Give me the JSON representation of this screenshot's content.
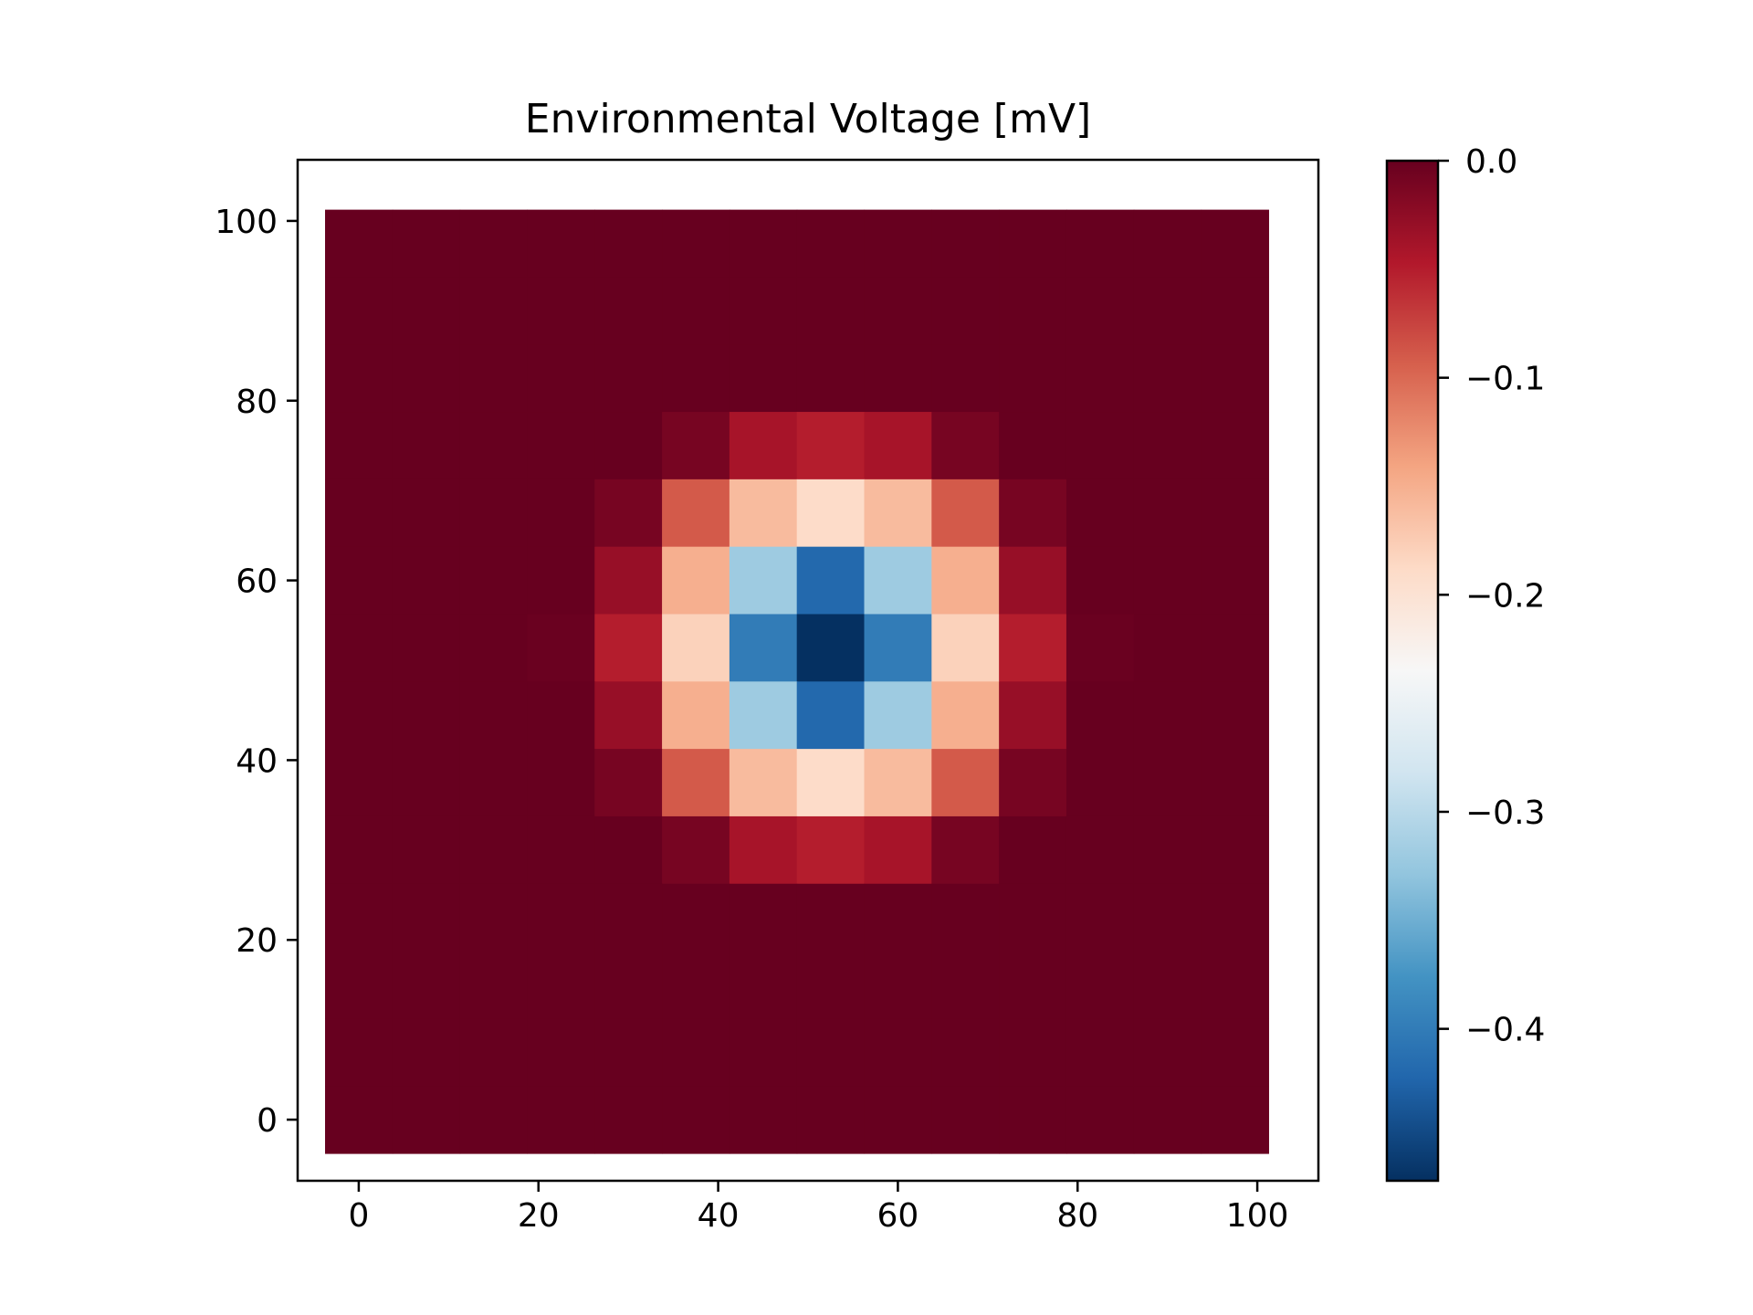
{
  "chart_data": {
    "type": "heatmap",
    "title": "Environmental Voltage [mV]",
    "xlabel": "",
    "ylabel": "",
    "colormap": "RdBu_r",
    "grid": false,
    "origin": "lower",
    "x_ticks": [
      "0",
      "20",
      "40",
      "60",
      "80",
      "100"
    ],
    "x_tick_values": [
      0,
      20,
      40,
      60,
      80,
      100
    ],
    "y_ticks": [
      "0",
      "20",
      "40",
      "60",
      "80",
      "100"
    ],
    "y_tick_values": [
      0,
      20,
      40,
      60,
      80,
      100
    ],
    "xlim": [
      -6.8,
      106.8
    ],
    "ylim": [
      -6.8,
      106.8
    ],
    "cell_centers": [
      0,
      7.5,
      15,
      22.5,
      30,
      37.5,
      45,
      52.5,
      60,
      67.5,
      75,
      82.5,
      90,
      97.5
    ],
    "cell_size": 7.5,
    "rows_top_to_bottom": [
      [
        0,
        0,
        0,
        0,
        0,
        0,
        0,
        0,
        0,
        0,
        0,
        0,
        0,
        0
      ],
      [
        0,
        0,
        0,
        0,
        0,
        0,
        0,
        0,
        0,
        0,
        0,
        0,
        0,
        0
      ],
      [
        0,
        0,
        0,
        0,
        0,
        0,
        0,
        0,
        0,
        0,
        0,
        0,
        0,
        0
      ],
      [
        0,
        0,
        0,
        0,
        0,
        -0.01,
        -0.04,
        -0.05,
        -0.04,
        -0.01,
        0,
        0,
        0,
        0
      ],
      [
        0,
        0,
        0,
        0,
        -0.01,
        -0.09,
        -0.16,
        -0.19,
        -0.16,
        -0.09,
        -0.01,
        0,
        0,
        0
      ],
      [
        0,
        0,
        0,
        0,
        -0.03,
        -0.15,
        -0.32,
        -0.42,
        -0.32,
        -0.15,
        -0.03,
        0,
        0,
        0
      ],
      [
        0,
        0,
        0,
        -0.002,
        -0.05,
        -0.18,
        -0.4,
        -0.47,
        -0.4,
        -0.18,
        -0.05,
        -0.002,
        0,
        0
      ],
      [
        0,
        0,
        0,
        0,
        -0.03,
        -0.15,
        -0.32,
        -0.42,
        -0.32,
        -0.15,
        -0.03,
        0,
        0,
        0
      ],
      [
        0,
        0,
        0,
        0,
        -0.01,
        -0.09,
        -0.16,
        -0.19,
        -0.16,
        -0.09,
        -0.01,
        0,
        0,
        0
      ],
      [
        0,
        0,
        0,
        0,
        0,
        -0.01,
        -0.04,
        -0.05,
        -0.04,
        -0.01,
        0,
        0,
        0,
        0
      ],
      [
        0,
        0,
        0,
        0,
        0,
        0,
        0,
        0,
        0,
        0,
        0,
        0,
        0,
        0
      ],
      [
        0,
        0,
        0,
        0,
        0,
        0,
        0,
        0,
        0,
        0,
        0,
        0,
        0,
        0
      ],
      [
        0,
        0,
        0,
        0,
        0,
        0,
        0,
        0,
        0,
        0,
        0,
        0,
        0,
        0
      ],
      [
        0,
        0,
        0,
        0,
        0,
        0,
        0,
        0,
        0,
        0,
        0,
        0,
        0,
        0
      ]
    ],
    "colorbar": {
      "vmin": -0.47,
      "vmax": 0.0,
      "ticks": [
        "0.0",
        "−0.1",
        "−0.2",
        "−0.3",
        "−0.4"
      ],
      "tick_values": [
        0.0,
        -0.1,
        -0.2,
        -0.3,
        -0.4
      ]
    }
  }
}
